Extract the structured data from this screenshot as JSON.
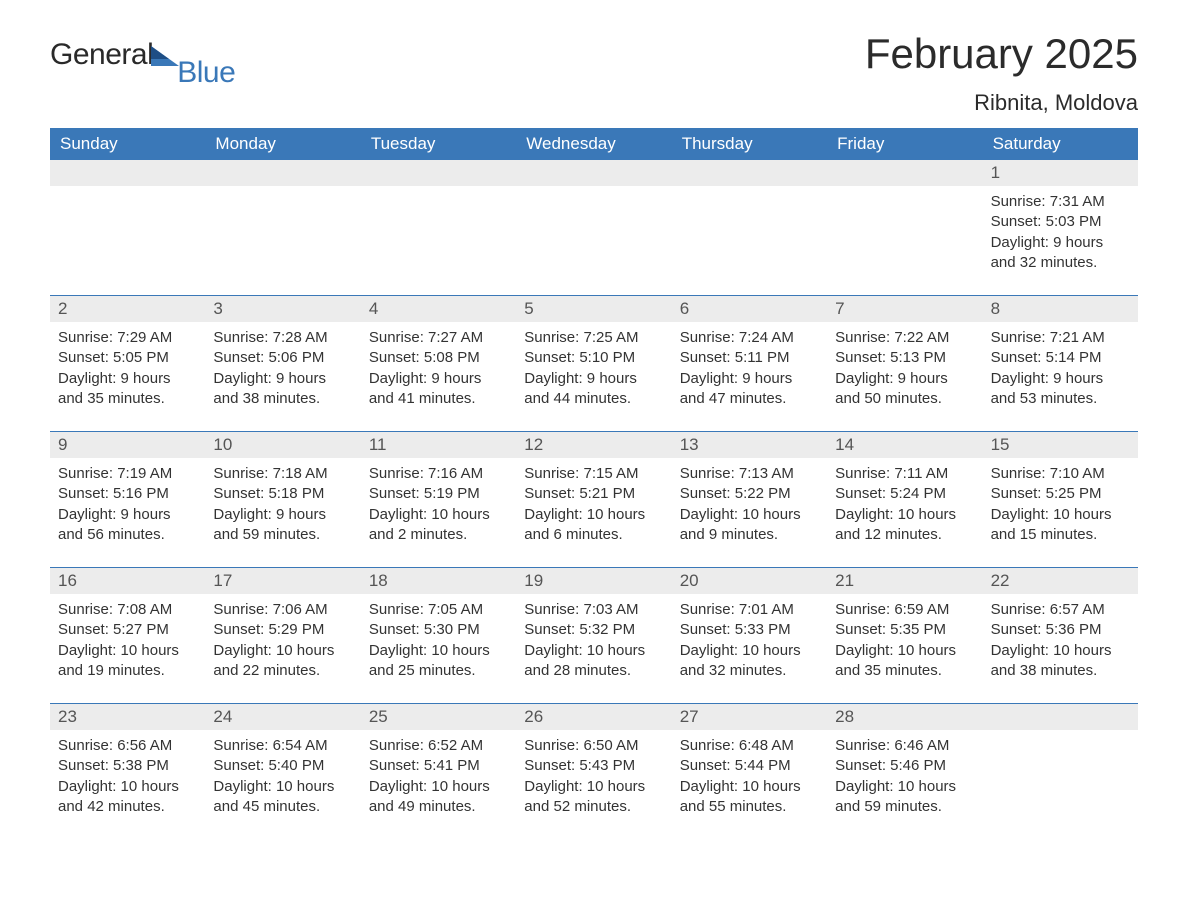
{
  "brand": {
    "part1": "General",
    "part2": "Blue"
  },
  "title": "February 2025",
  "location": "Ribnita, Moldova",
  "colors": {
    "header_bg": "#3a78b8",
    "header_text": "#ffffff",
    "daynum_bg": "#ececec",
    "week_border": "#3a78b8",
    "body_text": "#333333",
    "brand_blue": "#3a78b8",
    "brand_dark": "#2a2a2a",
    "page_bg": "#ffffff"
  },
  "day_names": [
    "Sunday",
    "Monday",
    "Tuesday",
    "Wednesday",
    "Thursday",
    "Friday",
    "Saturday"
  ],
  "weeks": [
    [
      null,
      null,
      null,
      null,
      null,
      null,
      {
        "n": "1",
        "sunrise": "Sunrise: 7:31 AM",
        "sunset": "Sunset: 5:03 PM",
        "d1": "Daylight: 9 hours",
        "d2": "and 32 minutes."
      }
    ],
    [
      {
        "n": "2",
        "sunrise": "Sunrise: 7:29 AM",
        "sunset": "Sunset: 5:05 PM",
        "d1": "Daylight: 9 hours",
        "d2": "and 35 minutes."
      },
      {
        "n": "3",
        "sunrise": "Sunrise: 7:28 AM",
        "sunset": "Sunset: 5:06 PM",
        "d1": "Daylight: 9 hours",
        "d2": "and 38 minutes."
      },
      {
        "n": "4",
        "sunrise": "Sunrise: 7:27 AM",
        "sunset": "Sunset: 5:08 PM",
        "d1": "Daylight: 9 hours",
        "d2": "and 41 minutes."
      },
      {
        "n": "5",
        "sunrise": "Sunrise: 7:25 AM",
        "sunset": "Sunset: 5:10 PM",
        "d1": "Daylight: 9 hours",
        "d2": "and 44 minutes."
      },
      {
        "n": "6",
        "sunrise": "Sunrise: 7:24 AM",
        "sunset": "Sunset: 5:11 PM",
        "d1": "Daylight: 9 hours",
        "d2": "and 47 minutes."
      },
      {
        "n": "7",
        "sunrise": "Sunrise: 7:22 AM",
        "sunset": "Sunset: 5:13 PM",
        "d1": "Daylight: 9 hours",
        "d2": "and 50 minutes."
      },
      {
        "n": "8",
        "sunrise": "Sunrise: 7:21 AM",
        "sunset": "Sunset: 5:14 PM",
        "d1": "Daylight: 9 hours",
        "d2": "and 53 minutes."
      }
    ],
    [
      {
        "n": "9",
        "sunrise": "Sunrise: 7:19 AM",
        "sunset": "Sunset: 5:16 PM",
        "d1": "Daylight: 9 hours",
        "d2": "and 56 minutes."
      },
      {
        "n": "10",
        "sunrise": "Sunrise: 7:18 AM",
        "sunset": "Sunset: 5:18 PM",
        "d1": "Daylight: 9 hours",
        "d2": "and 59 minutes."
      },
      {
        "n": "11",
        "sunrise": "Sunrise: 7:16 AM",
        "sunset": "Sunset: 5:19 PM",
        "d1": "Daylight: 10 hours",
        "d2": "and 2 minutes."
      },
      {
        "n": "12",
        "sunrise": "Sunrise: 7:15 AM",
        "sunset": "Sunset: 5:21 PM",
        "d1": "Daylight: 10 hours",
        "d2": "and 6 minutes."
      },
      {
        "n": "13",
        "sunrise": "Sunrise: 7:13 AM",
        "sunset": "Sunset: 5:22 PM",
        "d1": "Daylight: 10 hours",
        "d2": "and 9 minutes."
      },
      {
        "n": "14",
        "sunrise": "Sunrise: 7:11 AM",
        "sunset": "Sunset: 5:24 PM",
        "d1": "Daylight: 10 hours",
        "d2": "and 12 minutes."
      },
      {
        "n": "15",
        "sunrise": "Sunrise: 7:10 AM",
        "sunset": "Sunset: 5:25 PM",
        "d1": "Daylight: 10 hours",
        "d2": "and 15 minutes."
      }
    ],
    [
      {
        "n": "16",
        "sunrise": "Sunrise: 7:08 AM",
        "sunset": "Sunset: 5:27 PM",
        "d1": "Daylight: 10 hours",
        "d2": "and 19 minutes."
      },
      {
        "n": "17",
        "sunrise": "Sunrise: 7:06 AM",
        "sunset": "Sunset: 5:29 PM",
        "d1": "Daylight: 10 hours",
        "d2": "and 22 minutes."
      },
      {
        "n": "18",
        "sunrise": "Sunrise: 7:05 AM",
        "sunset": "Sunset: 5:30 PM",
        "d1": "Daylight: 10 hours",
        "d2": "and 25 minutes."
      },
      {
        "n": "19",
        "sunrise": "Sunrise: 7:03 AM",
        "sunset": "Sunset: 5:32 PM",
        "d1": "Daylight: 10 hours",
        "d2": "and 28 minutes."
      },
      {
        "n": "20",
        "sunrise": "Sunrise: 7:01 AM",
        "sunset": "Sunset: 5:33 PM",
        "d1": "Daylight: 10 hours",
        "d2": "and 32 minutes."
      },
      {
        "n": "21",
        "sunrise": "Sunrise: 6:59 AM",
        "sunset": "Sunset: 5:35 PM",
        "d1": "Daylight: 10 hours",
        "d2": "and 35 minutes."
      },
      {
        "n": "22",
        "sunrise": "Sunrise: 6:57 AM",
        "sunset": "Sunset: 5:36 PM",
        "d1": "Daylight: 10 hours",
        "d2": "and 38 minutes."
      }
    ],
    [
      {
        "n": "23",
        "sunrise": "Sunrise: 6:56 AM",
        "sunset": "Sunset: 5:38 PM",
        "d1": "Daylight: 10 hours",
        "d2": "and 42 minutes."
      },
      {
        "n": "24",
        "sunrise": "Sunrise: 6:54 AM",
        "sunset": "Sunset: 5:40 PM",
        "d1": "Daylight: 10 hours",
        "d2": "and 45 minutes."
      },
      {
        "n": "25",
        "sunrise": "Sunrise: 6:52 AM",
        "sunset": "Sunset: 5:41 PM",
        "d1": "Daylight: 10 hours",
        "d2": "and 49 minutes."
      },
      {
        "n": "26",
        "sunrise": "Sunrise: 6:50 AM",
        "sunset": "Sunset: 5:43 PM",
        "d1": "Daylight: 10 hours",
        "d2": "and 52 minutes."
      },
      {
        "n": "27",
        "sunrise": "Sunrise: 6:48 AM",
        "sunset": "Sunset: 5:44 PM",
        "d1": "Daylight: 10 hours",
        "d2": "and 55 minutes."
      },
      {
        "n": "28",
        "sunrise": "Sunrise: 6:46 AM",
        "sunset": "Sunset: 5:46 PM",
        "d1": "Daylight: 10 hours",
        "d2": "and 59 minutes."
      },
      null
    ]
  ]
}
